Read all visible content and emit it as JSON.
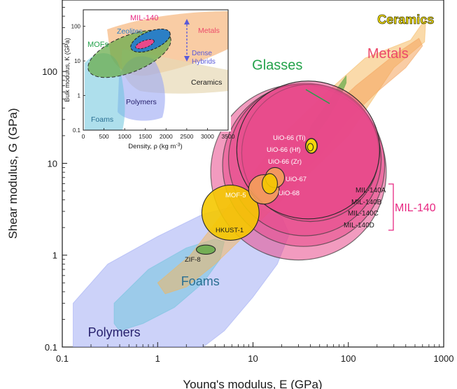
{
  "chart_data": [
    {
      "type": "scatter",
      "kind": "material-property-chart (Ashby plot)",
      "xscale": "log",
      "yscale": "log",
      "xlim": [
        0.1,
        1000
      ],
      "ylim": [
        0.1,
        600
      ],
      "xlabel": "Young's modulus, E (GPa)",
      "ylabel": "Shear modulus, G (GPa)",
      "xticks": [
        {
          "v": 0.1,
          "label": "0.1"
        },
        {
          "v": 1,
          "label": "1"
        },
        {
          "v": 10,
          "label": "10"
        },
        {
          "v": 100,
          "label": "100"
        },
        {
          "v": 1000,
          "label": "1000"
        }
      ],
      "yticks": [
        {
          "v": 0.1,
          "label": "0.1"
        },
        {
          "v": 1,
          "label": "1"
        },
        {
          "v": 10,
          "label": "10"
        },
        {
          "v": 100,
          "label": "100"
        }
      ],
      "regions": [
        {
          "name": "Ceramics",
          "color": "#f6b655",
          "label_color": "#ffe600",
          "outline": [
            [
              1,
              0.5
            ],
            [
              2.2,
              1.0
            ],
            [
              5,
              3
            ],
            [
              20,
              20
            ],
            [
              60,
              60
            ],
            [
              150,
              140
            ],
            [
              450,
              220
            ],
            [
              650,
              380
            ],
            [
              630,
              210
            ],
            [
              300,
              110
            ],
            [
              100,
              20
            ],
            [
              30,
              6
            ],
            [
              10,
              2
            ],
            [
              4,
              0.8
            ],
            [
              2,
              0.45
            ],
            [
              1.2,
              0.38
            ]
          ],
          "label": {
            "text": "Ceramics",
            "x": 400,
            "y": 330
          }
        },
        {
          "name": "Metals",
          "color": "#f4a25a",
          "label_color": "#ec4a6a",
          "outline": [
            [
              12,
              6
            ],
            [
              25,
              14
            ],
            [
              50,
              30
            ],
            [
              120,
              70
            ],
            [
              300,
              150
            ],
            [
              550,
              230
            ],
            [
              600,
              190
            ],
            [
              400,
              110
            ],
            [
              200,
              60
            ],
            [
              100,
              30
            ],
            [
              50,
              12
            ],
            [
              20,
              5
            ],
            [
              12,
              4
            ]
          ],
          "label": {
            "text": "Metals",
            "x": 260,
            "y": 140
          }
        },
        {
          "name": "Glasses",
          "color": "#6aac4c",
          "label_color": "#23a24a",
          "outline": [
            [
              40,
              25
            ],
            [
              60,
              45
            ],
            [
              80,
              70
            ],
            [
              95,
              90
            ],
            [
              95,
              75
            ],
            [
              80,
              50
            ],
            [
              60,
              30
            ],
            [
              45,
              20
            ],
            [
              38,
              18
            ]
          ],
          "label": {
            "text": "Glasses",
            "x": 18,
            "y": 105
          }
        },
        {
          "name": "Polymers",
          "color": "#9aa6f3",
          "label_color": "#27216d",
          "outline": [
            [
              0.13,
              0.1
            ],
            [
              0.13,
              0.3
            ],
            [
              0.3,
              0.8
            ],
            [
              1,
              1.6
            ],
            [
              3,
              2.8
            ],
            [
              7,
              3.5
            ],
            [
              12,
              3.2
            ],
            [
              20,
              2.6
            ],
            [
              24,
              1.7
            ],
            [
              18,
              0.8
            ],
            [
              10,
              0.35
            ],
            [
              5,
              0.15
            ],
            [
              3,
              0.1
            ]
          ],
          "label": {
            "text": "Polymers",
            "x": 0.35,
            "y": 0.13
          }
        },
        {
          "name": "Foams",
          "color": "#6cc4dc",
          "label_color": "#2a6f92",
          "outline": [
            [
              0.35,
              0.18
            ],
            [
              0.35,
              0.3
            ],
            [
              0.8,
              0.7
            ],
            [
              2,
              1.2
            ],
            [
              4,
              1.5
            ],
            [
              5,
              1.4
            ],
            [
              4.5,
              0.9
            ],
            [
              3,
              0.5
            ],
            [
              1.5,
              0.27
            ],
            [
              0.7,
              0.18
            ],
            [
              0.4,
              0.15
            ]
          ],
          "label": {
            "text": "Foams",
            "x": 2.8,
            "y": 0.47
          }
        }
      ],
      "points": [
        {
          "name": "UiO-66 (Ti)",
          "x": 41,
          "y": 15.5,
          "rx_dec": 0.06,
          "ry_dec": 0.08,
          "color": "#f5e400",
          "label_pos": "inside"
        },
        {
          "name": "UiO-66 (Hf)",
          "x": 40,
          "y": 15,
          "rx_dec": 0.03,
          "ry_dec": 0.04,
          "color": "#f5e400"
        },
        {
          "name": "UiO-66 (Zr)",
          "x": 38,
          "y": 14,
          "rx_dec": 0.75,
          "ry_dec": 0.75,
          "color": "#e8498a"
        },
        {
          "name": "UiO-67",
          "x": 17,
          "y": 7,
          "rx_dec": 0.1,
          "ry_dec": 0.11,
          "color": "#f4a05a"
        },
        {
          "name": "UiO-68",
          "x": 15,
          "y": 6,
          "rx_dec": 0.08,
          "ry_dec": 0.11,
          "color": "#f5c800"
        },
        {
          "name": "MOF-5",
          "x": 13,
          "y": 5.2,
          "rx_dec": 0.16,
          "ry_dec": 0.16,
          "color": "#f4a05a"
        },
        {
          "name": "HKUST-1",
          "x": 5.8,
          "y": 2.9,
          "rx_dec": 0.3,
          "ry_dec": 0.3,
          "color": "#f5c800"
        },
        {
          "name": "ZIF-8",
          "x": 3.2,
          "y": 1.15,
          "rx_dec": 0.1,
          "ry_dec": 0.05,
          "color": "#6aac4c"
        }
      ],
      "big_circles": [
        {
          "name": "MIL-140A",
          "x": 30,
          "y": 8,
          "rdec": 0.92,
          "color": "#e8498a"
        },
        {
          "name": "MIL-140B",
          "x": 34,
          "y": 9.5,
          "rdec": 0.85,
          "color": "#e8498a"
        },
        {
          "name": "MIL-140C",
          "x": 35,
          "y": 11,
          "rdec": 0.8,
          "color": "#e8498a"
        },
        {
          "name": "MIL-140D",
          "x": 40,
          "y": 13,
          "rdec": 0.72,
          "color": "#e8498a"
        }
      ],
      "mil140_labels": [
        "MIL-140A",
        "MIL-140B",
        "MIL-140C",
        "MIL-140D"
      ],
      "mil140_group_label": "MIL-140",
      "mil140_color": "#e82882"
    },
    {
      "type": "scatter",
      "kind": "inset",
      "xscale": "linear",
      "yscale": "log",
      "xlim": [
        0,
        3500
      ],
      "ylim": [
        0.1,
        300
      ],
      "xlabel": "Density, ρ (kg m",
      "xlabel_sup": "-3",
      "xlabel_tail": ")",
      "ylabel": "Bulk modulus, K (GPa)",
      "xticks": [
        "0",
        "500",
        "1000",
        "1500",
        "2000",
        "2500",
        "3000",
        "3500"
      ],
      "yticks": [
        "0.1",
        "1",
        "10",
        "100"
      ],
      "regions": [
        {
          "name": "Metals",
          "color": "#f4a25a",
          "label_color": "#ec4a6a"
        },
        {
          "name": "Ceramics",
          "color": "#e7d9b5",
          "label_color": "#1a1a1a"
        },
        {
          "name": "Polymers",
          "color": "#9aa6f3",
          "label_color": "#27216d"
        },
        {
          "name": "Foams",
          "color": "#6cc4dc",
          "label_color": "#2a6f92"
        },
        {
          "name": "MOFs",
          "color": "#6aac4c",
          "label_color": "#23a24a"
        },
        {
          "name": "Zeolites",
          "color": "#2b7fc5",
          "label_color": "#2b7fc5"
        },
        {
          "name": "MIL-140",
          "color": "#e8498a",
          "label_color": "#e82882"
        }
      ],
      "arrow_label": [
        "Dense",
        "Hybrids"
      ],
      "arrow_color": "#5a5ad8"
    }
  ]
}
